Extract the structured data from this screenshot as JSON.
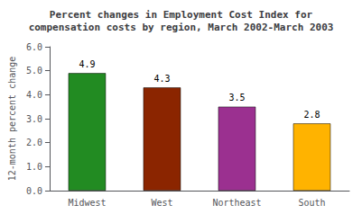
{
  "chart_data": {
    "type": "bar",
    "title": "Percent changes in Employment Cost Index for\ncompensation costs by region, March 2002-March 2003",
    "categories": [
      "Midwest",
      "West",
      "Northeast",
      "South"
    ],
    "values": [
      4.9,
      4.3,
      3.5,
      2.8
    ],
    "colors": [
      "#228B22",
      "#8B2500",
      "#9B3090",
      "#FFB300"
    ],
    "ylabel": "12-month percent change",
    "ylim": [
      0.0,
      6.0
    ],
    "yticks": [
      {
        "value": 0.0,
        "label": "0.0"
      },
      {
        "value": 1.0,
        "label": "1.0"
      },
      {
        "value": 2.0,
        "label": "2.0"
      },
      {
        "value": 3.0,
        "label": "3.0"
      },
      {
        "value": 4.0,
        "label": "4.0"
      },
      {
        "value": 5.0,
        "label": "5.0"
      },
      {
        "value": 6.0,
        "label": "6.0"
      }
    ],
    "grid": false,
    "data_labels": true
  }
}
